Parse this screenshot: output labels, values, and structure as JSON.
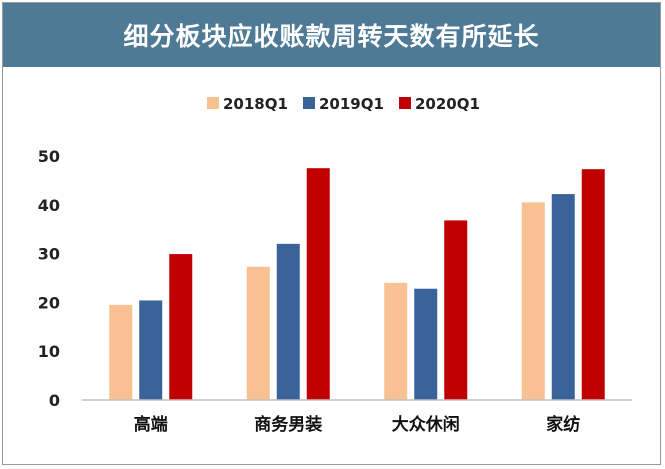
{
  "chart_data": {
    "type": "bar",
    "title": "细分板块应收账款周转天数有所延长",
    "categories": [
      "高端",
      "商务男装",
      "大众休闲",
      "家纺"
    ],
    "series": [
      {
        "name": "2018Q1",
        "color": "#f9c191",
        "values": [
          19.5,
          27.3,
          24.0,
          40.5
        ]
      },
      {
        "name": "2019Q1",
        "color": "#3a639a",
        "values": [
          20.4,
          32.0,
          22.8,
          42.2
        ]
      },
      {
        "name": "2020Q1",
        "color": "#c00000",
        "values": [
          29.9,
          47.5,
          36.8,
          47.3
        ]
      }
    ],
    "ylim": [
      0,
      50
    ],
    "yticks": [
      "0",
      "10",
      "20",
      "30",
      "40",
      "50"
    ],
    "grid": false,
    "legend": "top"
  }
}
